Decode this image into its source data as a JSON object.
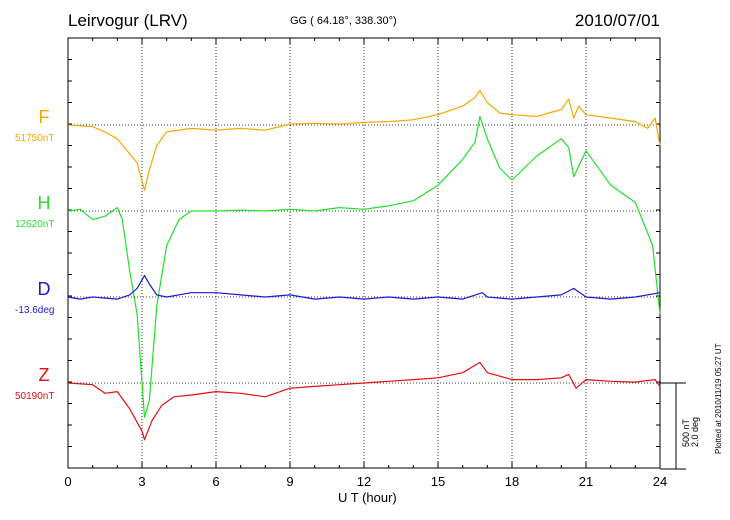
{
  "header": {
    "station": "Leirvogur (LRV)",
    "coords": "GG ( 64.18°, 338.30°)",
    "date": "2010/07/01"
  },
  "footer": {
    "plotted": "Plotted at 2010/11/19 05:27 UT",
    "scale_line1": "500 nT",
    "scale_line2": "2.0 deg"
  },
  "chart_data": {
    "type": "line",
    "xlabel": "U T (hour)",
    "xlim": [
      0,
      24
    ],
    "xticks": [
      0,
      3,
      6,
      9,
      12,
      15,
      18,
      21,
      24
    ],
    "grid": true,
    "scale": {
      "nT_per_bar": 500,
      "deg_per_bar": 2.0
    },
    "series": [
      {
        "name": "F",
        "baseline_label": "51750nT",
        "color": "#f5a800",
        "points": [
          [
            0,
            0
          ],
          [
            1,
            -10
          ],
          [
            1.5,
            -40
          ],
          [
            2,
            -80
          ],
          [
            2.4,
            -150
          ],
          [
            2.8,
            -220
          ],
          [
            3.1,
            -380
          ],
          [
            3.3,
            -260
          ],
          [
            3.6,
            -120
          ],
          [
            4,
            -40
          ],
          [
            5,
            -20
          ],
          [
            6,
            -30
          ],
          [
            7,
            -20
          ],
          [
            8,
            -30
          ],
          [
            9,
            5
          ],
          [
            10,
            10
          ],
          [
            11,
            5
          ],
          [
            12,
            15
          ],
          [
            13,
            20
          ],
          [
            14,
            30
          ],
          [
            15,
            60
          ],
          [
            16,
            110
          ],
          [
            16.5,
            160
          ],
          [
            16.7,
            200
          ],
          [
            17,
            130
          ],
          [
            17.5,
            70
          ],
          [
            18,
            60
          ],
          [
            19,
            50
          ],
          [
            20,
            90
          ],
          [
            20.3,
            150
          ],
          [
            20.5,
            40
          ],
          [
            20.7,
            110
          ],
          [
            21,
            60
          ],
          [
            22,
            40
          ],
          [
            23,
            20
          ],
          [
            23.5,
            -20
          ],
          [
            23.8,
            40
          ],
          [
            24,
            -120
          ]
        ]
      },
      {
        "name": "H",
        "baseline_label": "12620nT",
        "color": "#22e02b",
        "points": [
          [
            0,
            0
          ],
          [
            0.5,
            10
          ],
          [
            1,
            -50
          ],
          [
            1.5,
            -30
          ],
          [
            2,
            20
          ],
          [
            2.2,
            -50
          ],
          [
            2.5,
            -350
          ],
          [
            2.8,
            -600
          ],
          [
            3.1,
            -1200
          ],
          [
            3.3,
            -1100
          ],
          [
            3.6,
            -550
          ],
          [
            4,
            -200
          ],
          [
            4.5,
            -50
          ],
          [
            5,
            0
          ],
          [
            6,
            0
          ],
          [
            7,
            5
          ],
          [
            8,
            0
          ],
          [
            9,
            10
          ],
          [
            10,
            0
          ],
          [
            11,
            20
          ],
          [
            12,
            10
          ],
          [
            13,
            30
          ],
          [
            14,
            60
          ],
          [
            15,
            150
          ],
          [
            16,
            300
          ],
          [
            16.5,
            400
          ],
          [
            16.7,
            550
          ],
          [
            17,
            420
          ],
          [
            17.5,
            250
          ],
          [
            18,
            180
          ],
          [
            19,
            320
          ],
          [
            20,
            420
          ],
          [
            20.3,
            370
          ],
          [
            20.5,
            200
          ],
          [
            21,
            350
          ],
          [
            22,
            150
          ],
          [
            23,
            50
          ],
          [
            23.7,
            -200
          ],
          [
            24,
            -600
          ]
        ]
      },
      {
        "name": "D",
        "baseline_label": "-13.6deg",
        "color": "#1a1ad8",
        "points": [
          [
            0,
            0
          ],
          [
            0.5,
            -0.05
          ],
          [
            1,
            0
          ],
          [
            2,
            -0.05
          ],
          [
            2.5,
            0.05
          ],
          [
            2.8,
            0.2
          ],
          [
            3.1,
            0.5
          ],
          [
            3.3,
            0.3
          ],
          [
            3.6,
            0.05
          ],
          [
            4,
            0
          ],
          [
            5,
            0.1
          ],
          [
            6,
            0.1
          ],
          [
            7,
            0.05
          ],
          [
            8,
            0
          ],
          [
            9,
            0.05
          ],
          [
            10,
            -0.05
          ],
          [
            11,
            0
          ],
          [
            12,
            -0.05
          ],
          [
            13,
            0
          ],
          [
            14,
            -0.05
          ],
          [
            15,
            0
          ],
          [
            16,
            -0.05
          ],
          [
            16.8,
            0.1
          ],
          [
            17,
            0
          ],
          [
            18,
            -0.05
          ],
          [
            19,
            0
          ],
          [
            20,
            0.05
          ],
          [
            20.5,
            0.2
          ],
          [
            21,
            0
          ],
          [
            22,
            -0.05
          ],
          [
            23,
            0
          ],
          [
            24,
            0.1
          ]
        ]
      },
      {
        "name": "Z",
        "baseline_label": "50190nT",
        "color": "#e01010",
        "points": [
          [
            0,
            0
          ],
          [
            1,
            -10
          ],
          [
            1.5,
            -60
          ],
          [
            2,
            -50
          ],
          [
            2.5,
            -150
          ],
          [
            3,
            -280
          ],
          [
            3.1,
            -330
          ],
          [
            3.4,
            -220
          ],
          [
            3.8,
            -130
          ],
          [
            4.3,
            -80
          ],
          [
            5,
            -70
          ],
          [
            6,
            -50
          ],
          [
            7,
            -60
          ],
          [
            8,
            -80
          ],
          [
            9,
            -30
          ],
          [
            10,
            -20
          ],
          [
            11,
            -10
          ],
          [
            12,
            0
          ],
          [
            13,
            10
          ],
          [
            14,
            20
          ],
          [
            15,
            30
          ],
          [
            16,
            60
          ],
          [
            16.7,
            120
          ],
          [
            17,
            60
          ],
          [
            18,
            20
          ],
          [
            19,
            20
          ],
          [
            20,
            30
          ],
          [
            20.3,
            50
          ],
          [
            20.6,
            -30
          ],
          [
            21,
            20
          ],
          [
            22,
            10
          ],
          [
            23,
            5
          ],
          [
            23.8,
            20
          ],
          [
            24,
            -20
          ]
        ]
      }
    ]
  }
}
